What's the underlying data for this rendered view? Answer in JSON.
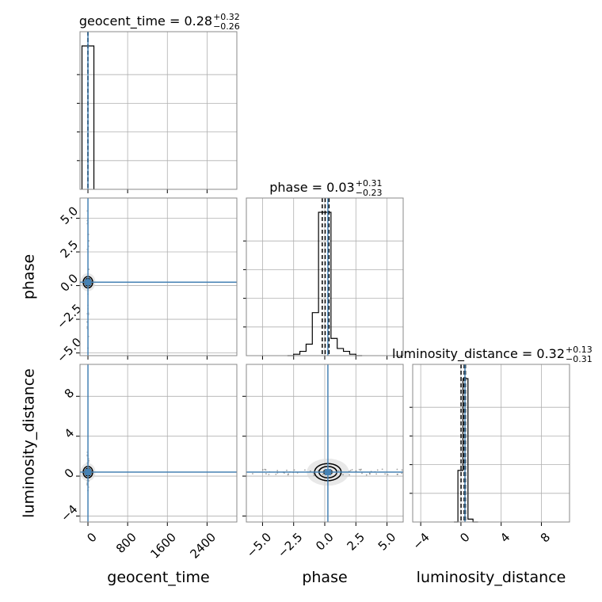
{
  "chart_data": {
    "type": "corner",
    "parameters": [
      "geocent_time",
      "phase",
      "luminosity_distance"
    ],
    "truth_color": "#4682b4",
    "hist_color": "#000000",
    "marginals": [
      {
        "param": "geocent_time",
        "title_name": "geocent_time",
        "median": "0.28",
        "plus": "+0.32",
        "minus": "−0.26",
        "quantiles": [
          0.02,
          0.28,
          0.6
        ],
        "truth": 0.28,
        "bins": [
          -120,
          0,
          120
        ],
        "heights": [
          1,
          1
        ],
        "xlim": [
          -160,
          3000
        ],
        "xticks": [
          0,
          800,
          1600,
          2400
        ],
        "xticklabels": [
          "0",
          "800",
          "1600",
          "2400"
        ]
      },
      {
        "param": "phase",
        "title_name": "phase",
        "median": "0.03",
        "plus": "+0.31",
        "minus": "−0.23",
        "quantiles": [
          -0.2,
          0.03,
          0.34
        ],
        "truth": 0.25,
        "bins": [
          -3.0,
          -2.5,
          -2.0,
          -1.5,
          -1.0,
          -0.5,
          0.0,
          0.5,
          1.0,
          1.5,
          2.0,
          2.5,
          3.0
        ],
        "heights": [
          0.0,
          0.01,
          0.03,
          0.08,
          0.3,
          1.0,
          1.0,
          0.12,
          0.05,
          0.03,
          0.01,
          0.0
        ],
        "xlim": [
          -6.3,
          6.3
        ],
        "xticks": [
          -5.0,
          -2.5,
          0.0,
          2.5,
          5.0
        ],
        "xticklabels": [
          "−5.0",
          "−2.5",
          "0.0",
          "2.5",
          "5.0"
        ]
      },
      {
        "param": "luminosity_distance",
        "title_name": "luminosity_distance",
        "median": "0.32",
        "plus": "+0.13",
        "minus": "−0.31",
        "quantiles": [
          0.01,
          0.32,
          0.45
        ],
        "truth": 0.4,
        "bins": [
          -0.7,
          -0.3,
          0.2,
          0.7,
          1.2,
          1.7
        ],
        "heights": [
          0.0,
          0.36,
          1.0,
          0.02,
          0.0
        ],
        "xlim": [
          -4.8,
          10.8
        ],
        "xticks": [
          -4,
          0,
          4,
          8
        ],
        "xticklabels": [
          "−4",
          "0",
          "4",
          "8"
        ]
      }
    ],
    "rows": [
      {
        "param": "phase",
        "ylim": [
          -5.2,
          6.5
        ],
        "yticks": [
          -5.0,
          -2.5,
          0.0,
          2.5,
          5.0
        ],
        "yticklabels": [
          "−5.0",
          "−2.5",
          "0.0",
          "2.5",
          "5.0"
        ]
      },
      {
        "param": "luminosity_distance",
        "ylim": [
          -4.6,
          11.2
        ],
        "yticks": [
          -4,
          0,
          4,
          8
        ],
        "yticklabels": [
          "−4",
          "0",
          "4",
          "8"
        ]
      }
    ],
    "grid": true,
    "xlabels": [
      "geocent_time",
      "phase",
      "luminosity_distance"
    ],
    "ylabels": [
      "phase",
      "luminosity_distance"
    ]
  }
}
